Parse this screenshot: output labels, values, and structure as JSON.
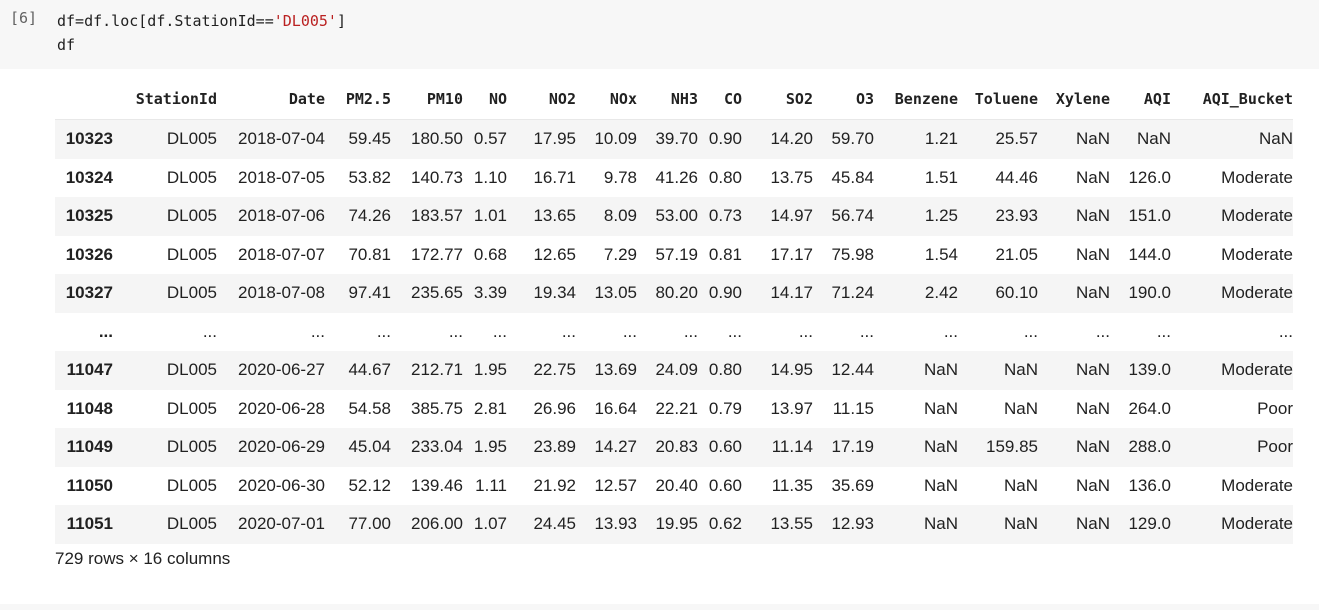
{
  "cell": {
    "prompt": "[6]",
    "code_line1_prefix": "df=df.loc[df.StationId==",
    "code_line1_string": "'DL005'",
    "code_line1_suffix": "]",
    "code_line2": "df"
  },
  "table": {
    "columns": [
      "",
      "StationId",
      "Date",
      "PM2.5",
      "PM10",
      "NO",
      "NO2",
      "NOx",
      "NH3",
      "CO",
      "SO2",
      "O3",
      "Benzene",
      "Toluene",
      "Xylene",
      "AQI",
      "AQI_Bucket"
    ],
    "rows": [
      {
        "index": "10323",
        "cells": [
          "DL005",
          "2018-07-04",
          "59.45",
          "180.50",
          "0.57",
          "17.95",
          "10.09",
          "39.70",
          "0.90",
          "14.20",
          "59.70",
          "1.21",
          "25.57",
          "NaN",
          "NaN",
          "NaN"
        ]
      },
      {
        "index": "10324",
        "cells": [
          "DL005",
          "2018-07-05",
          "53.82",
          "140.73",
          "1.10",
          "16.71",
          "9.78",
          "41.26",
          "0.80",
          "13.75",
          "45.84",
          "1.51",
          "44.46",
          "NaN",
          "126.0",
          "Moderate"
        ]
      },
      {
        "index": "10325",
        "cells": [
          "DL005",
          "2018-07-06",
          "74.26",
          "183.57",
          "1.01",
          "13.65",
          "8.09",
          "53.00",
          "0.73",
          "14.97",
          "56.74",
          "1.25",
          "23.93",
          "NaN",
          "151.0",
          "Moderate"
        ]
      },
      {
        "index": "10326",
        "cells": [
          "DL005",
          "2018-07-07",
          "70.81",
          "172.77",
          "0.68",
          "12.65",
          "7.29",
          "57.19",
          "0.81",
          "17.17",
          "75.98",
          "1.54",
          "21.05",
          "NaN",
          "144.0",
          "Moderate"
        ]
      },
      {
        "index": "10327",
        "cells": [
          "DL005",
          "2018-07-08",
          "97.41",
          "235.65",
          "3.39",
          "19.34",
          "13.05",
          "80.20",
          "0.90",
          "14.17",
          "71.24",
          "2.42",
          "60.10",
          "NaN",
          "190.0",
          "Moderate"
        ]
      },
      {
        "index": "...",
        "cells": [
          "...",
          "...",
          "...",
          "...",
          "...",
          "...",
          "...",
          "...",
          "...",
          "...",
          "...",
          "...",
          "...",
          "...",
          "...",
          "..."
        ]
      },
      {
        "index": "11047",
        "cells": [
          "DL005",
          "2020-06-27",
          "44.67",
          "212.71",
          "1.95",
          "22.75",
          "13.69",
          "24.09",
          "0.80",
          "14.95",
          "12.44",
          "NaN",
          "NaN",
          "NaN",
          "139.0",
          "Moderate"
        ]
      },
      {
        "index": "11048",
        "cells": [
          "DL005",
          "2020-06-28",
          "54.58",
          "385.75",
          "2.81",
          "26.96",
          "16.64",
          "22.21",
          "0.79",
          "13.97",
          "11.15",
          "NaN",
          "NaN",
          "NaN",
          "264.0",
          "Poor"
        ]
      },
      {
        "index": "11049",
        "cells": [
          "DL005",
          "2020-06-29",
          "45.04",
          "233.04",
          "1.95",
          "23.89",
          "14.27",
          "20.83",
          "0.60",
          "11.14",
          "17.19",
          "NaN",
          "159.85",
          "NaN",
          "288.0",
          "Poor"
        ]
      },
      {
        "index": "11050",
        "cells": [
          "DL005",
          "2020-06-30",
          "52.12",
          "139.46",
          "1.11",
          "21.92",
          "12.57",
          "20.40",
          "0.60",
          "11.35",
          "35.69",
          "NaN",
          "NaN",
          "NaN",
          "136.0",
          "Moderate"
        ]
      },
      {
        "index": "11051",
        "cells": [
          "DL005",
          "2020-07-01",
          "77.00",
          "206.00",
          "1.07",
          "24.45",
          "13.93",
          "19.95",
          "0.62",
          "13.55",
          "12.93",
          "NaN",
          "NaN",
          "NaN",
          "129.0",
          "Moderate"
        ]
      }
    ]
  },
  "footer": "729 rows × 16 columns"
}
